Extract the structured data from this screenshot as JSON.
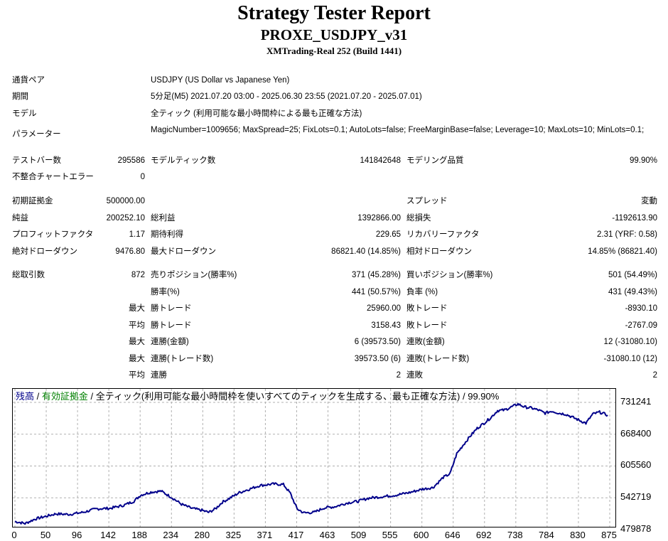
{
  "header": {
    "title": "Strategy Tester Report",
    "subtitle": "PROXE_USDJPY_v31",
    "server": "XMTrading-Real 252 (Build 1441)"
  },
  "info": {
    "symbol_label": "通貨ペア",
    "symbol_value": "USDJPY (US Dollar vs Japanese Yen)",
    "period_label": "期間",
    "period_value": "5分足(M5) 2021.07.20 03:00 - 2025.06.30 23:55 (2021.07.20 - 2025.07.01)",
    "model_label": "モデル",
    "model_value": "全ティック (利用可能な最小時間枠による最も正確な方法)",
    "params_label": "パラメーター",
    "params_value": "MagicNumber=1009656; MaxSpread=25; FixLots=0.1; AutoLots=false; FreeMarginBase=false; Leverage=10; MaxLots=10; MinLots=0.1;"
  },
  "stats": {
    "bars_label": "テストバー数",
    "bars_value": "295586",
    "ticks_label": "モデルティック数",
    "ticks_value": "141842648",
    "quality_label": "モデリング品質",
    "quality_value": "99.90%",
    "mismatch_label": "不整合チャートエラー",
    "mismatch_value": "0",
    "deposit_label": "初期証拠金",
    "deposit_value": "500000.00",
    "spread_label": "スプレッド",
    "spread_value": "変動",
    "net_label": "純益",
    "net_value": "200252.10",
    "gross_profit_label": "総利益",
    "gross_profit_value": "1392866.00",
    "gross_loss_label": "総損失",
    "gross_loss_value": "-1192613.90",
    "pf_label": "プロフィットファクタ",
    "pf_value": "1.17",
    "expected_label": "期待利得",
    "expected_value": "229.65",
    "recovery_label": "リカバリーファクタ",
    "recovery_value": "2.31 (YRF: 0.58)",
    "abs_dd_label": "絶対ドローダウン",
    "abs_dd_value": "9476.80",
    "max_dd_label": "最大ドローダウン",
    "max_dd_value": "86821.40 (14.85%)",
    "rel_dd_label": "相対ドローダウン",
    "rel_dd_value": "14.85% (86821.40)",
    "trades_label": "総取引数",
    "trades_value": "872",
    "short_label": "売りポジション(勝率%)",
    "short_value": "371 (45.28%)",
    "long_label": "買いポジション(勝率%)",
    "long_value": "501 (54.49%)",
    "winrate_label": "勝率(%)",
    "winrate_value": "441 (50.57%)",
    "lossrate_label": "負率 (%)",
    "lossrate_value": "431 (49.43%)",
    "largest_label": "最大",
    "largest_win_label": "勝トレード",
    "largest_win_value": "25960.00",
    "largest_loss_label": "敗トレード",
    "largest_loss_value": "-8930.10",
    "average_label": "平均",
    "avg_win_label": "勝トレード",
    "avg_win_value": "3158.43",
    "avg_loss_label": "敗トレード",
    "avg_loss_value": "-2767.09",
    "max_label_1": "最大",
    "consec_wins_money_label": "連勝(金額)",
    "consec_wins_money_value": "6 (39573.50)",
    "consec_losses_money_label": "連敗(金額)",
    "consec_losses_money_value": "12 (-31080.10)",
    "max_label_2": "最大",
    "consec_wins_count_label": "連勝(トレード数)",
    "consec_wins_count_value": "39573.50 (6)",
    "consec_losses_count_label": "連敗(トレード数)",
    "consec_losses_count_value": "-31080.10 (12)",
    "average_label_2": "平均",
    "avg_consec_wins_label": "連勝",
    "avg_consec_wins_value": "2",
    "avg_consec_losses_label": "連敗",
    "avg_consec_losses_value": "2"
  },
  "chart_legend": {
    "balance": "残高",
    "sep1": " / ",
    "equity": "有効証拠金",
    "rest": " / 全ティック(利用可能な最小時間枠を使いすべてのティックを生成する、最も正確な方法) / 99.90%"
  },
  "colors": {
    "balance_line": "#00008b",
    "equity_text": "#008000",
    "grid": "#b0b0b0"
  },
  "chart_data": {
    "type": "line",
    "title": "",
    "xlabel": "",
    "ylabel": "",
    "x_ticks": [
      "0",
      "50",
      "96",
      "142",
      "188",
      "234",
      "280",
      "325",
      "371",
      "417",
      "463",
      "509",
      "555",
      "600",
      "646",
      "692",
      "738",
      "784",
      "830",
      "875"
    ],
    "y_ticks": [
      "731241",
      "668400",
      "605560",
      "542719",
      "479878"
    ],
    "xlim": [
      0,
      872
    ],
    "ylim": [
      479878,
      731241
    ],
    "grid": true,
    "series": [
      {
        "name": "残高",
        "x": [
          0,
          15,
          30,
          45,
          60,
          80,
          100,
          120,
          140,
          160,
          175,
          185,
          200,
          215,
          230,
          245,
          260,
          275,
          285,
          295,
          305,
          320,
          330,
          345,
          360,
          380,
          395,
          405,
          415,
          425,
          440,
          455,
          470,
          490,
          505,
          520,
          540,
          560,
          580,
          600,
          615,
          630,
          640,
          650,
          660,
          670,
          680,
          690,
          700,
          710,
          720,
          730,
          740,
          750,
          760,
          770,
          780,
          790,
          800,
          810,
          820,
          830,
          840,
          850,
          860,
          872
        ],
        "y": [
          496000,
          492000,
          501000,
          506000,
          511000,
          510000,
          514000,
          521000,
          522000,
          528000,
          536000,
          548000,
          554000,
          556000,
          544000,
          530000,
          522000,
          518000,
          514000,
          521000,
          534000,
          545000,
          553000,
          560000,
          567000,
          570000,
          569000,
          552000,
          521000,
          513000,
          514000,
          523000,
          525000,
          533000,
          536000,
          542000,
          545000,
          548000,
          553000,
          560000,
          563000,
          583000,
          590000,
          630000,
          648000,
          665000,
          680000,
          690000,
          701000,
          715000,
          716000,
          722000,
          728000,
          722000,
          720000,
          716000,
          710000,
          714000,
          710000,
          708000,
          702000,
          696000,
          690000,
          708000,
          712000,
          706000
        ]
      }
    ]
  }
}
